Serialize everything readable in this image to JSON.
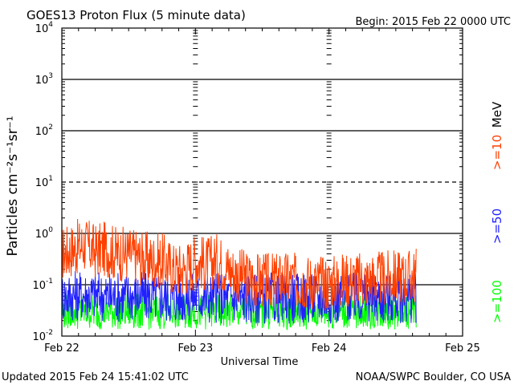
{
  "header": {
    "title": "GOES13 Proton Flux (5 minute data)",
    "begin": "Begin: 2015 Feb 22 0000 UTC"
  },
  "footer": {
    "updated": "Updated 2015 Feb 24 15:41:02 UTC",
    "credit": "NOAA/SWPC Boulder, CO USA"
  },
  "chart_data": {
    "type": "line",
    "title": "GOES13 Proton Flux (5 minute data)",
    "xlabel": "Universal Time",
    "ylabel": "Particles cm⁻²s⁻¹sr⁻¹",
    "yscale": "log",
    "ylim": [
      0.01,
      10000
    ],
    "xlim": [
      "2015-02-22 00:00",
      "2015-02-25 00:00"
    ],
    "x_ticks": [
      "Feb 22",
      "Feb 23",
      "Feb 24",
      "Feb 25"
    ],
    "y_ticks": [
      {
        "base": "10",
        "exp": "-2"
      },
      {
        "base": "10",
        "exp": "-1"
      },
      {
        "base": "10",
        "exp": "0"
      },
      {
        "base": "10",
        "exp": "1"
      },
      {
        "base": "10",
        "exp": "2"
      },
      {
        "base": "10",
        "exp": "3"
      },
      {
        "base": "10",
        "exp": "4"
      }
    ],
    "unit_label": "MeV",
    "data_end": "2015-02-24 15:40",
    "series": [
      {
        "name": ">=10",
        "color": "#ff4000",
        "x_hours": [
          0,
          2,
          4,
          6,
          8,
          10,
          12,
          14,
          16,
          18,
          20,
          22,
          24,
          26,
          28,
          30,
          32,
          34,
          36,
          38,
          40,
          42,
          44,
          46,
          48,
          50,
          52,
          54,
          56,
          58,
          60,
          62,
          63.7
        ],
        "values": [
          0.4,
          0.5,
          0.6,
          0.45,
          0.5,
          0.4,
          0.4,
          0.35,
          0.3,
          0.3,
          0.2,
          0.2,
          0.3,
          0.25,
          0.3,
          0.2,
          0.15,
          0.13,
          0.12,
          0.12,
          0.13,
          0.12,
          0.12,
          0.11,
          0.11,
          0.12,
          0.13,
          0.12,
          0.13,
          0.13,
          0.14,
          0.14,
          0.15
        ]
      },
      {
        "name": ">=50",
        "color": "#2020ff",
        "x_hours": [
          0,
          4,
          8,
          12,
          16,
          20,
          24,
          28,
          32,
          36,
          40,
          44,
          48,
          52,
          56,
          60,
          63.7
        ],
        "values": [
          0.06,
          0.065,
          0.06,
          0.06,
          0.06,
          0.055,
          0.06,
          0.055,
          0.055,
          0.055,
          0.055,
          0.055,
          0.055,
          0.055,
          0.055,
          0.055,
          0.055
        ]
      },
      {
        "name": ">=100",
        "color": "#00ff00",
        "x_hours": [
          0,
          4,
          8,
          12,
          16,
          20,
          24,
          28,
          32,
          36,
          40,
          44,
          48,
          52,
          56,
          60,
          63.7
        ],
        "values": [
          0.03,
          0.03,
          0.03,
          0.03,
          0.03,
          0.03,
          0.03,
          0.03,
          0.03,
          0.03,
          0.03,
          0.03,
          0.03,
          0.03,
          0.03,
          0.03,
          0.03
        ]
      }
    ]
  }
}
